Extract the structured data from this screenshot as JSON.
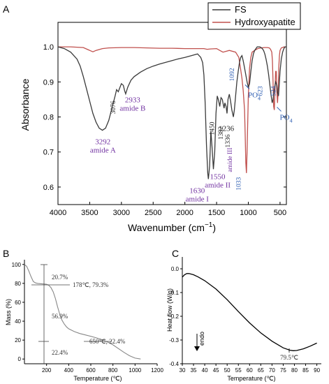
{
  "panel_letters": [
    "A",
    "B",
    "C"
  ],
  "chart_data": [
    {
      "type": "line",
      "panel": "A",
      "xlabel": "Wavenumber (cm",
      "xlabel_sup": "−1",
      "xlabel_close": ")",
      "ylabel": "Absorbance",
      "xlim": [
        4000,
        400
      ],
      "ylim": [
        0.55,
        1.07
      ],
      "xticks": [
        4000,
        3500,
        3000,
        2500,
        2000,
        1500,
        1000,
        500
      ],
      "yticks": [
        0.6,
        0.7,
        0.8,
        0.9,
        1.0
      ],
      "ytick_labels": [
        "0.6",
        "0.7",
        "0.8",
        "0.9",
        "1.0"
      ],
      "legend_position": "top-right",
      "colors": {
        "FS": "#3a3a3a",
        "Hydroxyapatite": "#c0504d",
        "annotation": "#7030a0",
        "arrow": "#2f5fb3"
      },
      "series": [
        {
          "name": "FS",
          "x": [
            4000,
            3900,
            3800,
            3700,
            3650,
            3600,
            3550,
            3500,
            3450,
            3400,
            3350,
            3300,
            3250,
            3200,
            3150,
            3100,
            3076,
            3050,
            3000,
            2970,
            2950,
            2933,
            2900,
            2850,
            2800,
            2700,
            2600,
            2500,
            2400,
            2300,
            2200,
            2100,
            2000,
            1900,
            1800,
            1750,
            1720,
            1700,
            1680,
            1660,
            1640,
            1630,
            1610,
            1590,
            1570,
            1550,
            1530,
            1510,
            1490,
            1470,
            1450,
            1430,
            1410,
            1400,
            1382,
            1370,
            1350,
            1336,
            1320,
            1300,
            1280,
            1260,
            1236,
            1220,
            1200,
            1180,
            1160,
            1140,
            1120,
            1100,
            1080,
            1060,
            1040,
            1020,
            1000,
            980,
            960,
            940,
            920,
            900,
            880,
            860,
            840,
            820,
            800,
            780,
            760,
            740,
            720,
            700,
            680,
            660,
            640,
            623,
            610,
            590,
            570,
            550,
            540,
            524,
            510,
            500,
            480,
            460,
            440,
            420,
            400
          ],
          "y": [
            1.0,
            0.995,
            0.985,
            0.965,
            0.945,
            0.915,
            0.88,
            0.845,
            0.81,
            0.785,
            0.768,
            0.762,
            0.768,
            0.79,
            0.825,
            0.86,
            0.878,
            0.872,
            0.895,
            0.89,
            0.875,
            0.866,
            0.885,
            0.905,
            0.915,
            0.928,
            0.938,
            0.945,
            0.951,
            0.956,
            0.961,
            0.966,
            0.97,
            0.975,
            0.98,
            0.97,
            0.955,
            0.92,
            0.84,
            0.72,
            0.64,
            0.623,
            0.66,
            0.76,
            0.71,
            0.651,
            0.7,
            0.81,
            0.86,
            0.848,
            0.83,
            0.855,
            0.85,
            0.84,
            0.825,
            0.84,
            0.83,
            0.81,
            0.85,
            0.865,
            0.845,
            0.82,
            0.8,
            0.82,
            0.86,
            0.9,
            0.93,
            0.955,
            0.97,
            0.975,
            0.96,
            0.94,
            0.92,
            0.9,
            0.885,
            0.895,
            0.93,
            0.96,
            0.98,
            0.99,
            0.995,
            1.0,
            1.0,
            1.0,
            0.998,
            0.995,
            0.99,
            0.98,
            0.965,
            0.945,
            0.92,
            0.89,
            0.86,
            0.84,
            0.85,
            0.88,
            0.9,
            0.89,
            0.87,
            0.86,
            0.9,
            0.93,
            0.965,
            0.985,
            0.995,
            1.0,
            1.0
          ]
        },
        {
          "name": "Hydroxyapatite",
          "x": [
            4000,
            3800,
            3600,
            3500,
            3450,
            3400,
            3300,
            3200,
            3000,
            2800,
            2600,
            2400,
            2200,
            2000,
            1800,
            1700,
            1650,
            1600,
            1500,
            1450,
            1400,
            1300,
            1200,
            1150,
            1120,
            1100,
            1080,
            1060,
            1050,
            1040,
            1030,
            1020,
            1000,
            980,
            960,
            940,
            900,
            850,
            800,
            750,
            700,
            670,
            650,
            630,
            620,
            610,
            600,
            590,
            580,
            570,
            560,
            550,
            540,
            530,
            520,
            510,
            500,
            480,
            450,
            430,
            400
          ],
          "y": [
            1.0,
            1.0,
            0.998,
            0.99,
            0.986,
            0.99,
            0.995,
            0.997,
            0.998,
            0.998,
            0.997,
            0.996,
            0.996,
            0.995,
            0.995,
            0.995,
            0.993,
            0.994,
            0.995,
            0.99,
            0.985,
            0.99,
            0.985,
            0.97,
            0.935,
            0.91,
            0.875,
            0.82,
            0.75,
            0.67,
            0.64,
            0.7,
            0.86,
            0.94,
            0.97,
            0.985,
            0.99,
            0.995,
            0.997,
            0.998,
            0.998,
            0.997,
            0.993,
            0.985,
            0.96,
            0.9,
            0.83,
            0.82,
            0.87,
            0.93,
            0.93,
            0.87,
            0.84,
            0.87,
            0.94,
            0.975,
            0.99,
            0.997,
            0.999,
            1.0,
            1.0
          ]
        }
      ],
      "annotations": [
        {
          "lines": [
            "3292",
            "amide A"
          ],
          "x": 3292,
          "y": 0.762,
          "style": "serif",
          "color": "purple"
        },
        {
          "lines": [
            "2933",
            "amide B"
          ],
          "x": 2933,
          "y": 0.866,
          "style": "serif",
          "color": "purple"
        },
        {
          "lines": [
            "3076"
          ],
          "x": 3076,
          "y": 0.878,
          "style": "serif-vertical",
          "color": "black"
        },
        {
          "lines": [
            "1630",
            "amide I"
          ],
          "x": 1630,
          "y": 0.623,
          "style": "serif",
          "color": "purple"
        },
        {
          "lines": [
            "1550",
            "amide II"
          ],
          "x": 1550,
          "y": 0.651,
          "style": "serif",
          "color": "purple"
        },
        {
          "lines": [
            "1450"
          ],
          "x": 1450,
          "y": 0.83,
          "style": "serif-vertical",
          "color": "black"
        },
        {
          "lines": [
            "1382"
          ],
          "x": 1382,
          "y": 0.825,
          "style": "serif-vertical",
          "color": "black"
        },
        {
          "lines": [
            "1336"
          ],
          "x": 1336,
          "y": 0.81,
          "style": "serif-vertical",
          "color": "black"
        },
        {
          "lines": [
            "1236"
          ],
          "x": 1236,
          "y": 0.8,
          "style": "serif",
          "color": "black"
        },
        {
          "lines": [
            "amide III"
          ],
          "x": 1236,
          "y": 0.8,
          "style": "serif-vertical",
          "color": "purple"
        },
        {
          "lines": [
            "1033"
          ],
          "x": 1033,
          "y": 0.64,
          "style": "serif-vertical",
          "color": "blue"
        },
        {
          "lines": [
            "1092"
          ],
          "x": 1092,
          "y": 0.88,
          "style": "serif-vertical",
          "color": "blue"
        },
        {
          "lines": [
            "PO",
            "4"
          ],
          "x": 1050,
          "y": 0.88,
          "style": "serif-sub",
          "color": "blue"
        },
        {
          "lines": [
            "623"
          ],
          "x": 623,
          "y": 0.84,
          "style": "serif-vertical",
          "color": "blue"
        },
        {
          "lines": [
            "524"
          ],
          "x": 524,
          "y": 0.84,
          "style": "serif-vertical",
          "color": "blue"
        },
        {
          "lines": [
            "PO",
            "4"
          ],
          "x": 570,
          "y": 0.84,
          "style": "serif-sub",
          "color": "blue"
        }
      ]
    },
    {
      "type": "line",
      "panel": "B",
      "xlabel": "Temperature (℃)",
      "ylabel": "Mass (%)",
      "xlim": [
        0,
        1200
      ],
      "ylim": [
        -5,
        105
      ],
      "xticks": [
        200,
        400,
        600,
        800,
        1000,
        1200
      ],
      "yticks": [
        0,
        20,
        40,
        60,
        80,
        100
      ],
      "series": [
        {
          "name": "",
          "x": [
            0,
            20,
            40,
            60,
            80,
            100,
            120,
            150,
            178,
            200,
            220,
            240,
            260,
            280,
            300,
            320,
            340,
            360,
            380,
            400,
            450,
            500,
            550,
            600,
            650,
            700,
            750,
            800,
            850,
            900,
            950,
            1000,
            1050
          ],
          "y": [
            100,
            98,
            93,
            87,
            82,
            80.5,
            80,
            79.6,
            79.3,
            79,
            78,
            75.5,
            71,
            64,
            55,
            47,
            41,
            37,
            34,
            32,
            29,
            27,
            25.5,
            24,
            22.4,
            20.5,
            18,
            15,
            11,
            7,
            3.5,
            1,
            0
          ]
        }
      ],
      "annotations": [
        "20.7%",
        "178℃, 79.3%",
        "56.9%",
        "650℃, 22.4%",
        "22.4%"
      ]
    },
    {
      "type": "line",
      "panel": "C",
      "xlabel": "Temperature (℃)",
      "ylabel": "Heat flow (W/g)",
      "xlim": [
        30,
        92
      ],
      "ylim": [
        -0.4,
        0.05
      ],
      "xticks": [
        30,
        35,
        40,
        45,
        50,
        55,
        60,
        65,
        70,
        75,
        80,
        85,
        90
      ],
      "yticks": [
        0.0,
        -0.1,
        -0.2,
        -0.3,
        -0.4
      ],
      "ytick_labels": [
        "0.0",
        "-0.1",
        "-0.2",
        "-0.3",
        "-0.4"
      ],
      "series": [
        {
          "name": "",
          "x": [
            30,
            31,
            32,
            33,
            35,
            37,
            40,
            45,
            50,
            55,
            60,
            65,
            70,
            75,
            78,
            79.5,
            81,
            84,
            87,
            90
          ],
          "y": [
            -0.035,
            -0.025,
            -0.02,
            -0.02,
            -0.025,
            -0.034,
            -0.05,
            -0.085,
            -0.13,
            -0.18,
            -0.228,
            -0.27,
            -0.305,
            -0.333,
            -0.343,
            -0.345,
            -0.344,
            -0.337,
            -0.326,
            -0.313
          ]
        }
      ],
      "annotations": [
        "endo",
        "79.5℃"
      ]
    }
  ]
}
